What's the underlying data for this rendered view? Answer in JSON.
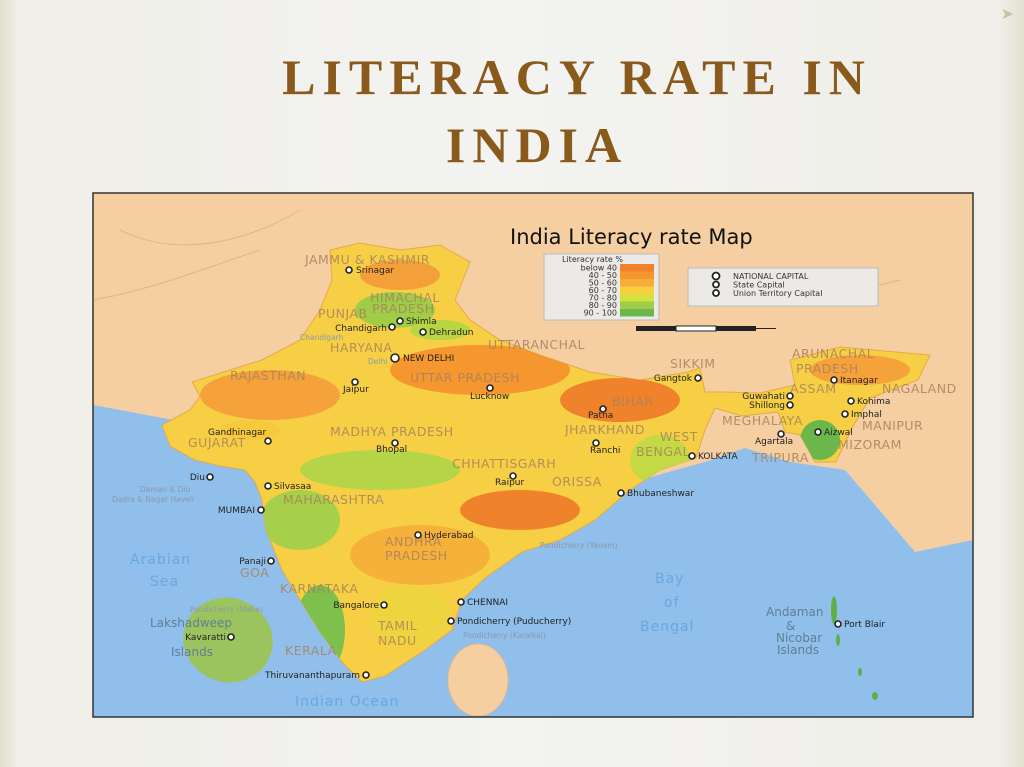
{
  "slide": {
    "title_line1": "LITERACY RATE IN",
    "title_line2": "INDIA"
  },
  "map": {
    "title": "India Literacy rate Map",
    "legend": {
      "title": "Literacy rate %",
      "entries": [
        {
          "label": "below 40",
          "color": "#f0822c"
        },
        {
          "label": "40 - 50",
          "color": "#f5962f"
        },
        {
          "label": "50 - 60",
          "color": "#f7ad37"
        },
        {
          "label": "60 - 70",
          "color": "#f8cf3c"
        },
        {
          "label": "70 - 80",
          "color": "#d6df3d"
        },
        {
          "label": "80 - 90",
          "color": "#9fcd47"
        },
        {
          "label": "90 - 100",
          "color": "#6cb74a"
        }
      ]
    },
    "symbols": [
      {
        "label": "NATIONAL CAPITAL",
        "icon": "star-circle-large"
      },
      {
        "label": "State Capital",
        "icon": "star-circle"
      },
      {
        "label": "Union Territory Capital",
        "icon": "dot-circle"
      }
    ],
    "colors": {
      "land": "#f5cfa1",
      "sea": "#8fbfea",
      "state_label": "#a9825f"
    },
    "states": [
      "JAMMU & KASHMIR",
      "HIMACHAL",
      "PRADESH",
      "PUNJAB",
      "HARYANA",
      "UTTARANCHAL",
      "RAJASTHAN",
      "UTTAR PRADESH",
      "BIHAR",
      "SIKKIM",
      "ARUNACHAL",
      "PRADESH",
      "ASSAM",
      "NAGALAND",
      "MEGHALAYA",
      "MANIPUR",
      "TRIPURA",
      "MIZORAM",
      "WEST",
      "BENGAL",
      "JHARKHAND",
      "GUJARAT",
      "MADHYA PRADESH",
      "CHHATTISGARH",
      "ORISSA",
      "MAHARASHTRA",
      "ANDHRA",
      "PRADESH",
      "GOA",
      "KARNATAKA",
      "TAMIL",
      "NADU",
      "KERALA"
    ],
    "cities": [
      "Srinagar",
      "Shimla",
      "Chandigarh",
      "Dehradun",
      "NEW DELHI",
      "Jaipur",
      "Lucknow",
      "Patna",
      "Gangtok",
      "Itanagar",
      "Guwahati",
      "Shillong",
      "Kohima",
      "Imphal",
      "Aizwal",
      "Agartala",
      "KOLKATA",
      "Ranchi",
      "Gandhinagar",
      "Bhopal",
      "Raipur",
      "Bhubaneshwar",
      "Diu",
      "Silvasaa",
      "MUMBAI",
      "Hyderabad",
      "Panaji",
      "Bangalore",
      "CHENNAI",
      "Pondicherry (Puducherry)",
      "Kavaratti",
      "Thiruvananthapuram",
      "Port Blair"
    ],
    "minor_labels": [
      "Delhi",
      "Chandigarh",
      "Daman & Diu",
      "Dadra & Nagar Haveli",
      "Pondicherry (Yanam)",
      "Pondicherry (Mahe)",
      "Pondicherry (Karaikal)"
    ],
    "water": [
      "Arabian",
      "Sea",
      "Bay",
      "of",
      "Bengal",
      "Indian Ocean"
    ],
    "islands": [
      "Lakshadweep",
      "Islands",
      "Andaman",
      "&",
      "Nicobar",
      "Islands"
    ]
  }
}
